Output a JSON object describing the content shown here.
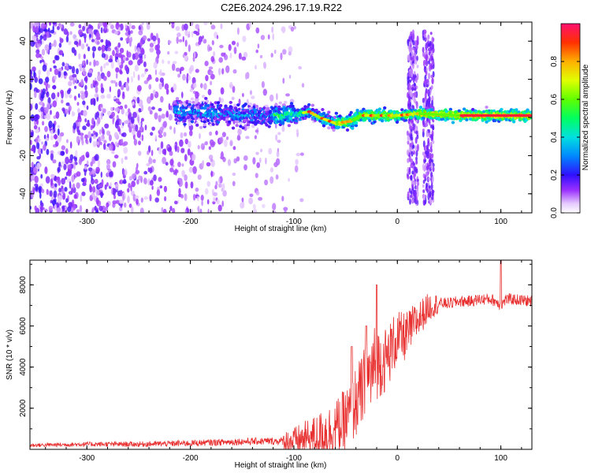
{
  "figure": {
    "title": "C2E6.2024.296.17.19.R22"
  },
  "chart_data": [
    {
      "type": "heatmap",
      "xlabel": "Height of straight line (km)",
      "ylabel": "Frequency (Hz)",
      "xlim": [
        -355,
        130
      ],
      "ylim": [
        -50,
        50
      ],
      "x_ticks": [
        -300,
        -200,
        -100,
        0,
        100
      ],
      "y_ticks": [
        -40,
        -20,
        0,
        20,
        40
      ],
      "grid": false,
      "colorbar": {
        "label": "Normalized spectral amplitude",
        "range": [
          0,
          1
        ],
        "ticks": [
          0.0,
          0.2,
          0.4,
          0.6,
          0.8
        ]
      },
      "features": {
        "noise_floor_extent_km": [
          -355,
          -110
        ],
        "carrier_frequency_trace": [
          [
            -210,
            3
          ],
          [
            -170,
            2
          ],
          [
            -140,
            1
          ],
          [
            -110,
            1
          ],
          [
            -95,
            2
          ],
          [
            -85,
            3
          ],
          [
            -75,
            0
          ],
          [
            -60,
            -3
          ],
          [
            -45,
            -2
          ],
          [
            -35,
            1
          ],
          [
            -20,
            1
          ],
          [
            -10,
            1
          ],
          [
            0,
            1
          ],
          [
            20,
            2
          ],
          [
            60,
            1
          ],
          [
            100,
            1
          ],
          [
            130,
            1
          ]
        ],
        "vertical_bursts_km": [
          [
            10,
            20
          ],
          [
            25,
            35
          ]
        ]
      }
    },
    {
      "type": "line",
      "xlabel": "Height of straight line (km)",
      "ylabel": "SNR (10 * v/v)",
      "xlim": [
        -355,
        130
      ],
      "ylim": [
        0,
        9200
      ],
      "x_ticks": [
        -300,
        -200,
        -100,
        0,
        100
      ],
      "y_ticks": [
        2000,
        4000,
        6000,
        8000
      ],
      "grid": false,
      "series": [
        {
          "color": "#e83030",
          "x": [
            -355,
            -300,
            -250,
            -200,
            -150,
            -120,
            -100,
            -90,
            -80,
            -70,
            -60,
            -50,
            -45,
            -40,
            -35,
            -30,
            -25,
            -20,
            -15,
            -10,
            -5,
            0,
            5,
            10,
            15,
            20,
            25,
            30,
            35,
            40,
            50,
            60,
            70,
            80,
            90,
            95,
            100,
            105,
            110,
            120,
            130
          ],
          "y": [
            200,
            250,
            250,
            300,
            380,
            400,
            400,
            500,
            600,
            800,
            1000,
            1400,
            1800,
            2300,
            2700,
            3300,
            3700,
            4200,
            4300,
            4400,
            5000,
            5400,
            5400,
            5600,
            6000,
            6300,
            6600,
            6900,
            7000,
            7100,
            7100,
            7200,
            7200,
            7300,
            7300,
            7200,
            7000,
            7300,
            7300,
            7250,
            7200
          ]
        }
      ],
      "spikes": [
        [
          -20,
          8000
        ],
        [
          100,
          9200
        ],
        [
          -44,
          5000
        ],
        [
          -30,
          6000
        ]
      ]
    }
  ]
}
